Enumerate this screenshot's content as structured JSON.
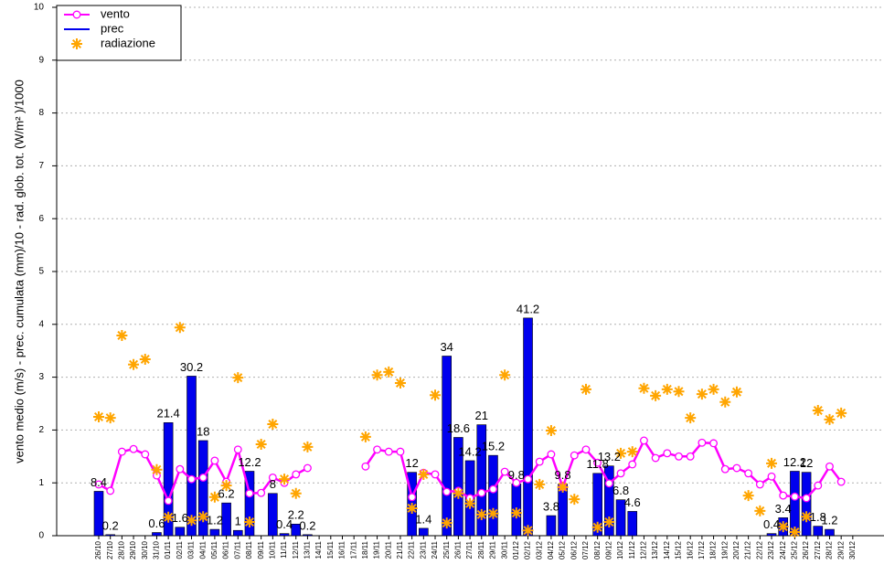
{
  "chart_data": {
    "type": "combo",
    "ylabel": "vento medio (m/s) - prec. cumulata (mm)/10 - rad. glob. tot. (W/m² )/1000",
    "categories": [
      "26/10",
      "27/10",
      "28/10",
      "29/10",
      "30/10",
      "31/10",
      "01/11",
      "02/11",
      "03/11",
      "04/11",
      "05/11",
      "06/11",
      "07/11",
      "08/11",
      "09/11",
      "10/11",
      "11/11",
      "12/11",
      "13/11",
      "14/11",
      "15/11",
      "16/11",
      "17/11",
      "18/11",
      "19/11",
      "20/11",
      "21/11",
      "22/11",
      "23/11",
      "24/11",
      "25/11",
      "26/11",
      "27/11",
      "28/11",
      "29/11",
      "30/11",
      "01/12",
      "02/12",
      "03/12",
      "04/12",
      "05/12",
      "06/12",
      "07/12",
      "08/12",
      "09/12",
      "10/12",
      "11/12",
      "12/12",
      "13/12",
      "14/12",
      "15/12",
      "16/12",
      "17/12",
      "18/12",
      "19/12",
      "20/12",
      "21/12",
      "22/12",
      "23/12",
      "24/12",
      "25/12",
      "26/12",
      "27/12",
      "28/12",
      "29/12",
      "30/12"
    ],
    "ylim": [
      0,
      10
    ],
    "yticks": [
      0,
      1,
      2,
      3,
      4,
      5,
      6,
      7,
      8,
      9,
      10
    ],
    "grid": true,
    "legend": "top-left",
    "series": [
      {
        "name": "vento",
        "type": "line",
        "color": "#ff00ff",
        "values": [
          0.97,
          0.85,
          1.59,
          1.64,
          1.54,
          1.14,
          0.66,
          1.26,
          1.07,
          1.1,
          1.42,
          1.02,
          1.63,
          0.8,
          0.81,
          1.1,
          1.0,
          1.16,
          1.28,
          null,
          null,
          null,
          null,
          1.31,
          1.63,
          1.59,
          1.59,
          0.73,
          1.19,
          1.16,
          0.83,
          0.85,
          0.71,
          0.81,
          0.88,
          1.21,
          1.0,
          1.07,
          1.4,
          1.54,
          0.92,
          1.52,
          1.63,
          1.38,
          0.99,
          1.18,
          1.35,
          1.8,
          1.47,
          1.56,
          1.5,
          1.5,
          1.76,
          1.75,
          1.26,
          1.28,
          1.18,
          0.97,
          1.12,
          0.76,
          0.74,
          0.71,
          0.95,
          1.31,
          1.02,
          null
        ]
      },
      {
        "name": "prec",
        "type": "bar",
        "color": "#0000ee",
        "values": [
          0.84,
          0.02,
          null,
          null,
          null,
          0.06,
          2.14,
          0.16,
          3.02,
          1.8,
          0.12,
          0.62,
          0.1,
          1.22,
          null,
          0.8,
          0.04,
          0.22,
          0.02,
          null,
          null,
          null,
          null,
          null,
          null,
          null,
          null,
          1.2,
          0.14,
          null,
          3.4,
          1.86,
          1.42,
          2.1,
          1.52,
          null,
          0.98,
          4.12,
          null,
          0.38,
          0.98,
          null,
          null,
          1.18,
          1.32,
          0.68,
          0.46,
          null,
          null,
          null,
          null,
          null,
          null,
          null,
          null,
          null,
          null,
          null,
          0.04,
          0.34,
          1.22,
          1.2,
          0.18,
          0.12,
          null,
          null
        ],
        "value_labels": [
          "8.4",
          "0.2",
          null,
          null,
          null,
          "0.6",
          "21.4",
          "1.6",
          "30.2",
          "18",
          "1.2",
          "6.2",
          "1",
          "12.2",
          null,
          "8",
          "0.4",
          "2.2",
          "0.2",
          null,
          null,
          null,
          null,
          null,
          null,
          null,
          null,
          "12",
          "1.4",
          null,
          "34",
          "18.6",
          "14.2",
          "21",
          "15.2",
          null,
          "9.8",
          "41.2",
          null,
          "3.8",
          "9.8",
          null,
          null,
          "11.8",
          "13.2",
          "6.8",
          "4.6",
          null,
          null,
          null,
          null,
          null,
          null,
          null,
          null,
          null,
          null,
          null,
          "0.4",
          "3.4",
          "12.2",
          "12",
          "1.8",
          "1.2",
          null,
          null
        ]
      },
      {
        "name": "radiazione",
        "type": "scatter",
        "color": "#ffa500",
        "values": [
          2.25,
          2.23,
          3.79,
          3.24,
          3.34,
          1.25,
          0.35,
          3.94,
          0.29,
          0.36,
          0.73,
          0.95,
          2.99,
          0.26,
          1.73,
          2.11,
          1.07,
          0.8,
          1.68,
          null,
          null,
          null,
          null,
          1.87,
          3.04,
          3.1,
          2.89,
          0.52,
          1.16,
          2.66,
          0.24,
          0.8,
          0.61,
          0.4,
          0.42,
          3.04,
          0.43,
          0.1,
          0.97,
          1.99,
          0.92,
          0.69,
          2.77,
          0.16,
          0.26,
          1.56,
          1.59,
          2.79,
          2.65,
          2.77,
          2.73,
          2.23,
          2.68,
          2.77,
          2.53,
          2.72,
          0.76,
          0.47,
          1.37,
          0.17,
          0.07,
          0.36,
          2.37,
          2.2,
          2.32,
          null
        ]
      }
    ]
  }
}
